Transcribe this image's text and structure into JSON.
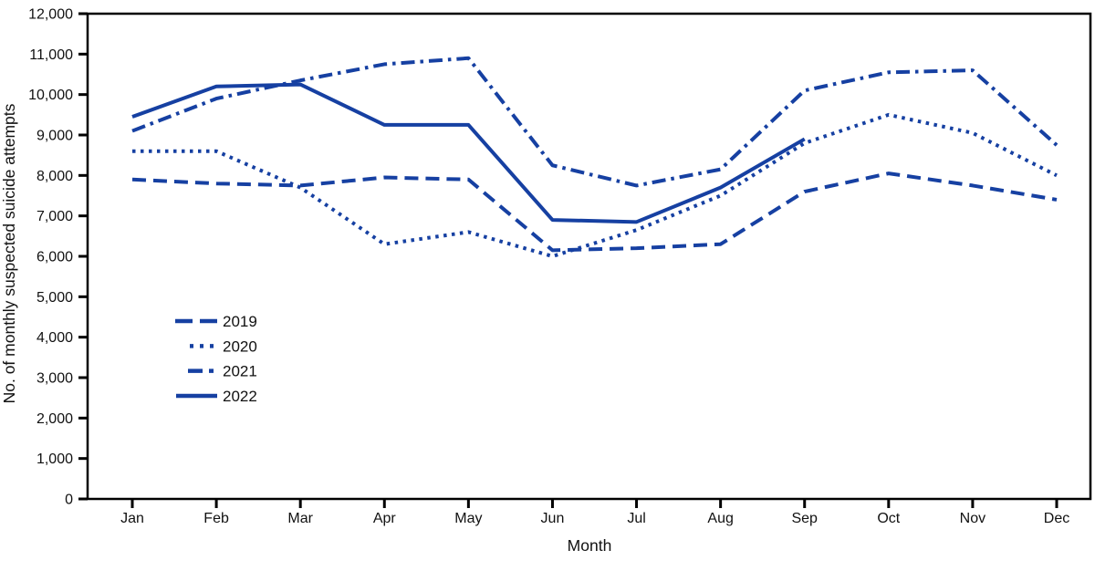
{
  "figure": {
    "background": "#ffffff",
    "line_color": "#1640a2",
    "axis_color": "#000000",
    "text_color": "#111111"
  },
  "chart_data": {
    "type": "line",
    "title": "",
    "xlabel": "Month",
    "ylabel": "No. of monthly suspected suicide attempts",
    "x_categories": [
      "Jan",
      "Feb",
      "Mar",
      "Apr",
      "May",
      "Jun",
      "Jul",
      "Aug",
      "Sep",
      "Oct",
      "Nov",
      "Dec"
    ],
    "y_axis": {
      "min": 0,
      "max": 12000,
      "tick_interval": 1000,
      "tick_labels": [
        "0",
        "1,000",
        "2,000",
        "3,000",
        "4,000",
        "5,000",
        "6,000",
        "7,000",
        "8,000",
        "9,000",
        "10,000",
        "11,000",
        "12,000"
      ]
    },
    "grid": false,
    "legend_position": "inside-left-middle",
    "series": [
      {
        "name": "2019",
        "line_style": "dashed",
        "values": [
          7900,
          7800,
          7750,
          7950,
          7900,
          6150,
          6200,
          6300,
          7600,
          8050,
          7750,
          7400
        ]
      },
      {
        "name": "2020",
        "line_style": "dotted",
        "values": [
          8600,
          8600,
          7700,
          6300,
          6600,
          6000,
          6650,
          7500,
          8800,
          9500,
          9050,
          8000
        ]
      },
      {
        "name": "2021",
        "line_style": "dash-dot",
        "values": [
          9100,
          9900,
          10350,
          10750,
          10900,
          8250,
          7750,
          8150,
          10100,
          10550,
          10600,
          8750
        ]
      },
      {
        "name": "2022",
        "line_style": "solid",
        "values": [
          9450,
          10200,
          10250,
          9250,
          9250,
          6900,
          6850,
          7700,
          8900,
          null,
          null,
          null
        ]
      }
    ]
  }
}
